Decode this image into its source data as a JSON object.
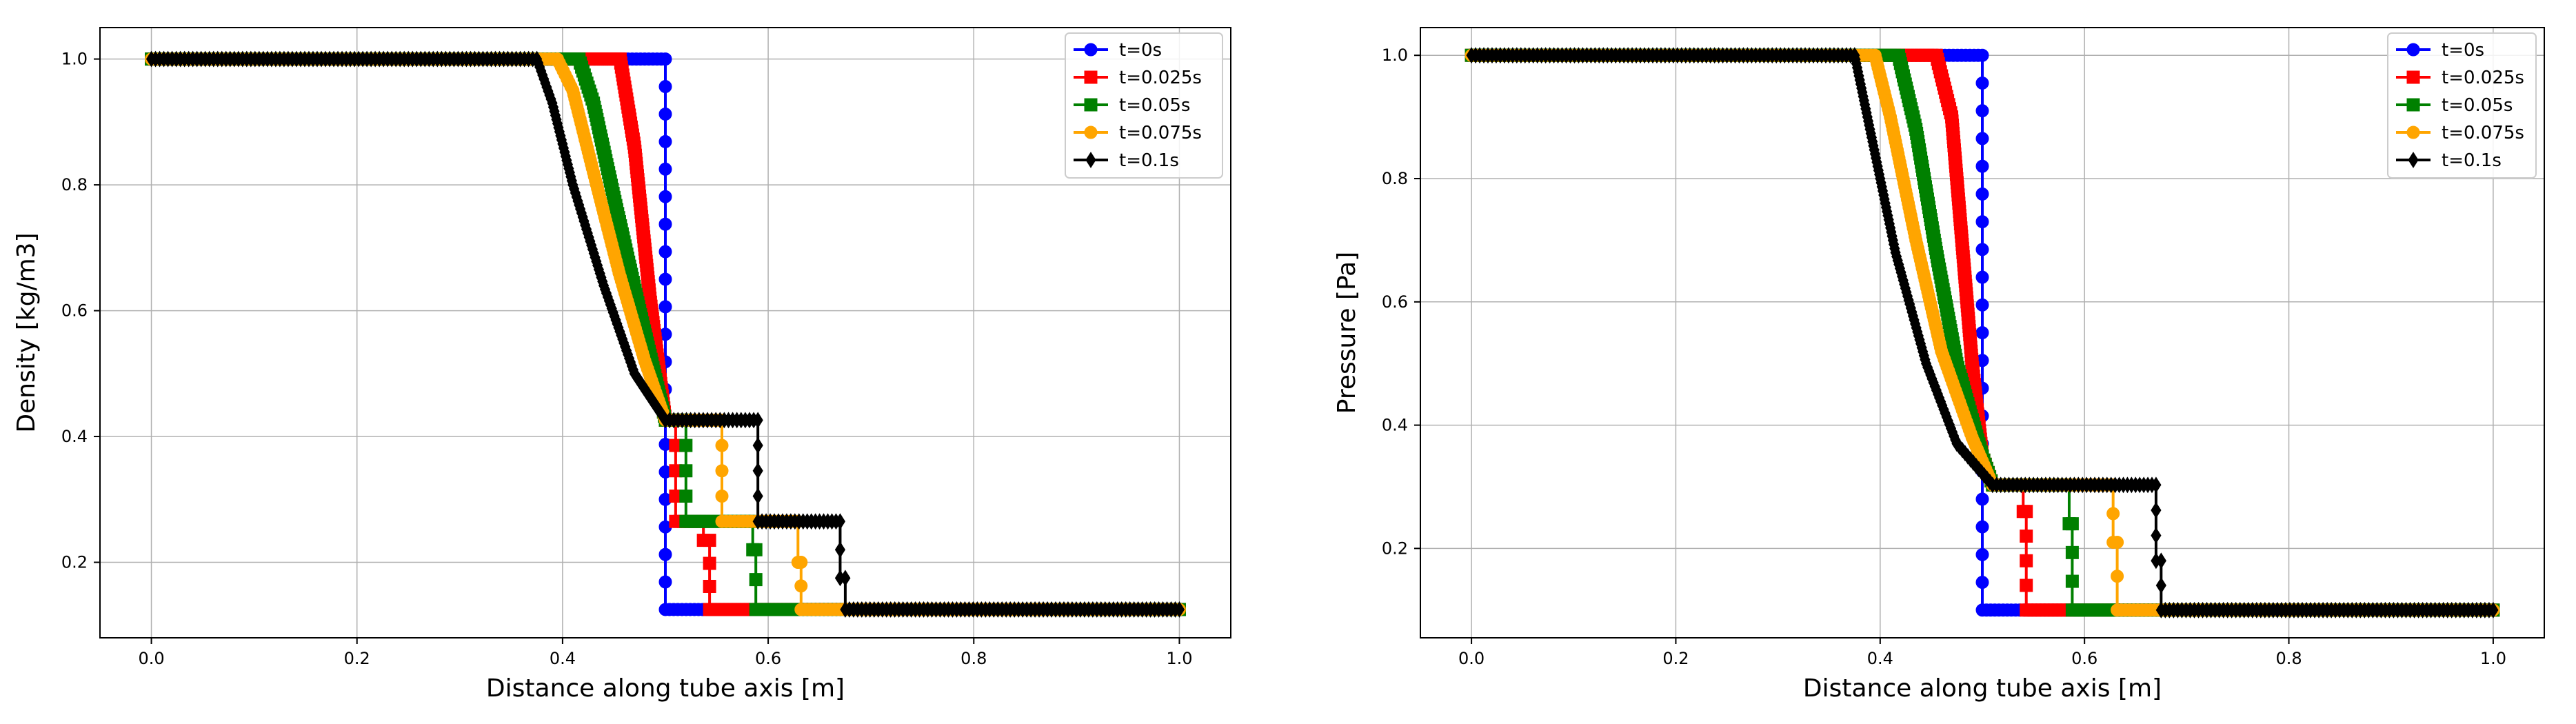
{
  "chart_data": [
    {
      "type": "line",
      "xlabel": "Distance along tube axis [m]",
      "ylabel": "Density [kg/m3]",
      "xlim": [
        -0.05,
        1.05
      ],
      "ylim": [
        0.08,
        1.05
      ],
      "xticks": [
        "0.0",
        "0.2",
        "0.4",
        "0.6",
        "0.8",
        "1.0"
      ],
      "yticks": [
        "0.2",
        "0.4",
        "0.6",
        "0.8",
        "1.0"
      ],
      "grid": true,
      "legend_position": "upper right",
      "series": [
        {
          "name": "t=0s",
          "color": "#0000ff",
          "marker": "circle",
          "x": [
            0.0,
            0.5,
            0.5,
            1.0
          ],
          "y": [
            1.0,
            1.0,
            0.125,
            0.125
          ]
        },
        {
          "name": "t=0.025s",
          "color": "#ff0000",
          "marker": "square",
          "x": [
            0.0,
            0.456,
            0.47,
            0.485,
            0.5,
            0.51,
            0.51,
            0.537,
            0.537,
            0.543,
            0.543,
            1.0
          ],
          "y": [
            1.0,
            1.0,
            0.86,
            0.62,
            0.426,
            0.426,
            0.265,
            0.265,
            0.235,
            0.235,
            0.125,
            0.125
          ]
        },
        {
          "name": "t=0.05s",
          "color": "#008000",
          "marker": "square",
          "x": [
            0.0,
            0.416,
            0.43,
            0.45,
            0.475,
            0.5,
            0.52,
            0.52,
            0.585,
            0.585,
            0.588,
            0.588,
            1.0
          ],
          "y": [
            1.0,
            1.0,
            0.93,
            0.78,
            0.6,
            0.426,
            0.426,
            0.265,
            0.265,
            0.22,
            0.22,
            0.125,
            0.125
          ]
        },
        {
          "name": "t=0.075s",
          "color": "#ffa500",
          "marker": "circle",
          "x": [
            0.0,
            0.395,
            0.41,
            0.43,
            0.455,
            0.48,
            0.5,
            0.555,
            0.555,
            0.629,
            0.629,
            0.632,
            0.632,
            1.0
          ],
          "y": [
            1.0,
            1.0,
            0.95,
            0.82,
            0.66,
            0.52,
            0.426,
            0.426,
            0.265,
            0.265,
            0.2,
            0.2,
            0.125,
            0.125
          ]
        },
        {
          "name": "t=0.1s",
          "color": "#000000",
          "marker": "diamond",
          "x": [
            0.0,
            0.375,
            0.39,
            0.41,
            0.44,
            0.47,
            0.5,
            0.59,
            0.59,
            0.67,
            0.67,
            0.675,
            0.675,
            1.0
          ],
          "y": [
            1.0,
            1.0,
            0.93,
            0.8,
            0.64,
            0.5,
            0.426,
            0.426,
            0.265,
            0.265,
            0.175,
            0.175,
            0.125,
            0.125
          ]
        }
      ]
    },
    {
      "type": "line",
      "xlabel": "Distance along tube axis [m]",
      "ylabel": "Pressure [Pa]",
      "xlim": [
        -0.05,
        1.05
      ],
      "ylim": [
        0.055,
        1.045
      ],
      "xticks": [
        "0.0",
        "0.2",
        "0.4",
        "0.6",
        "0.8",
        "1.0"
      ],
      "yticks": [
        "0.2",
        "0.4",
        "0.6",
        "0.8",
        "1.0"
      ],
      "grid": true,
      "legend_position": "upper right",
      "series": [
        {
          "name": "t=0s",
          "color": "#0000ff",
          "marker": "circle",
          "x": [
            0.0,
            0.5,
            0.5,
            1.0
          ],
          "y": [
            1.0,
            1.0,
            0.1,
            0.1
          ]
        },
        {
          "name": "t=0.025s",
          "color": "#ff0000",
          "marker": "square",
          "x": [
            0.0,
            0.455,
            0.47,
            0.48,
            0.49,
            0.5,
            0.51,
            0.54,
            0.54,
            0.543,
            0.543,
            1.0
          ],
          "y": [
            1.0,
            1.0,
            0.9,
            0.7,
            0.5,
            0.35,
            0.303,
            0.303,
            0.26,
            0.26,
            0.1,
            0.1
          ]
        },
        {
          "name": "t=0.05s",
          "color": "#008000",
          "marker": "square",
          "x": [
            0.0,
            0.418,
            0.435,
            0.455,
            0.475,
            0.5,
            0.51,
            0.585,
            0.585,
            0.588,
            0.588,
            1.0
          ],
          "y": [
            1.0,
            1.0,
            0.88,
            0.68,
            0.5,
            0.35,
            0.303,
            0.303,
            0.24,
            0.24,
            0.1,
            0.1
          ]
        },
        {
          "name": "t=0.075s",
          "color": "#ffa500",
          "marker": "circle",
          "x": [
            0.0,
            0.395,
            0.41,
            0.435,
            0.46,
            0.49,
            0.51,
            0.628,
            0.628,
            0.632,
            0.632,
            1.0
          ],
          "y": [
            1.0,
            1.0,
            0.9,
            0.7,
            0.52,
            0.38,
            0.303,
            0.303,
            0.21,
            0.21,
            0.1,
            0.1
          ]
        },
        {
          "name": "t=0.1s",
          "color": "#000000",
          "marker": "diamond",
          "x": [
            0.0,
            0.375,
            0.39,
            0.415,
            0.445,
            0.475,
            0.51,
            0.67,
            0.67,
            0.675,
            0.675,
            1.0
          ],
          "y": [
            1.0,
            1.0,
            0.88,
            0.68,
            0.5,
            0.37,
            0.303,
            0.303,
            0.18,
            0.18,
            0.1,
            0.1
          ]
        }
      ]
    }
  ]
}
